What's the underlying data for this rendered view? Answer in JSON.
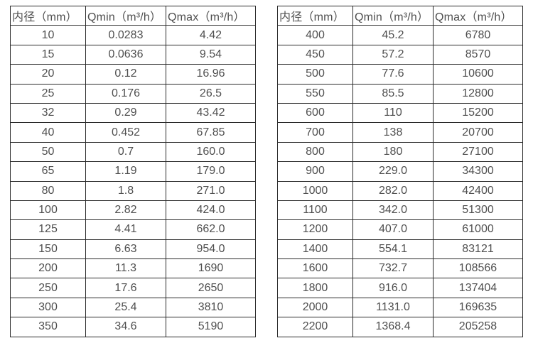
{
  "colors": {
    "background": "#ffffff",
    "border": "#2b2b2b",
    "text": "#4f4f4f"
  },
  "tables": [
    {
      "name": "flow-spec-table-small-diameters",
      "headers": [
        "内径（mm）",
        "Qmin（m³/h）",
        "Qmax（m³/h）"
      ],
      "rows": [
        [
          "10",
          "0.0283",
          "4.42"
        ],
        [
          "15",
          "0.0636",
          "9.54"
        ],
        [
          "20",
          "0.12",
          "16.96"
        ],
        [
          "25",
          "0.176",
          "26.5"
        ],
        [
          "32",
          "0.29",
          "43.42"
        ],
        [
          "40",
          "0.452",
          "67.85"
        ],
        [
          "50",
          "0.7",
          "160.0"
        ],
        [
          "65",
          "1.19",
          "179.0"
        ],
        [
          "80",
          "1.8",
          "271.0"
        ],
        [
          "100",
          "2.82",
          "424.0"
        ],
        [
          "125",
          "4.41",
          "662.0"
        ],
        [
          "150",
          "6.63",
          "954.0"
        ],
        [
          "200",
          "11.3",
          "1690"
        ],
        [
          "250",
          "17.6",
          "2650"
        ],
        [
          "300",
          "25.4",
          "3810"
        ],
        [
          "350",
          "34.6",
          "5190"
        ]
      ]
    },
    {
      "name": "flow-spec-table-large-diameters",
      "headers": [
        "内径（mm）",
        "Qmin（m³/h）",
        "Qmax（m³/h）"
      ],
      "rows": [
        [
          "400",
          "45.2",
          "6780"
        ],
        [
          "450",
          "57.2",
          "8570"
        ],
        [
          "500",
          "77.6",
          "10600"
        ],
        [
          "550",
          "85.5",
          "12800"
        ],
        [
          "600",
          "110",
          "15200"
        ],
        [
          "700",
          "138",
          "20700"
        ],
        [
          "800",
          "180",
          "27100"
        ],
        [
          "900",
          "229.0",
          "34300"
        ],
        [
          "1000",
          "282.0",
          "42400"
        ],
        [
          "1100",
          "342.0",
          "51300"
        ],
        [
          "1200",
          "407.0",
          "61000"
        ],
        [
          "1400",
          "554.1",
          "83121"
        ],
        [
          "1600",
          "732.7",
          "108566"
        ],
        [
          "1800",
          "916.0",
          "137404"
        ],
        [
          "2000",
          "1131.0",
          "169635"
        ],
        [
          "2200",
          "1368.4",
          "205258"
        ]
      ]
    }
  ]
}
